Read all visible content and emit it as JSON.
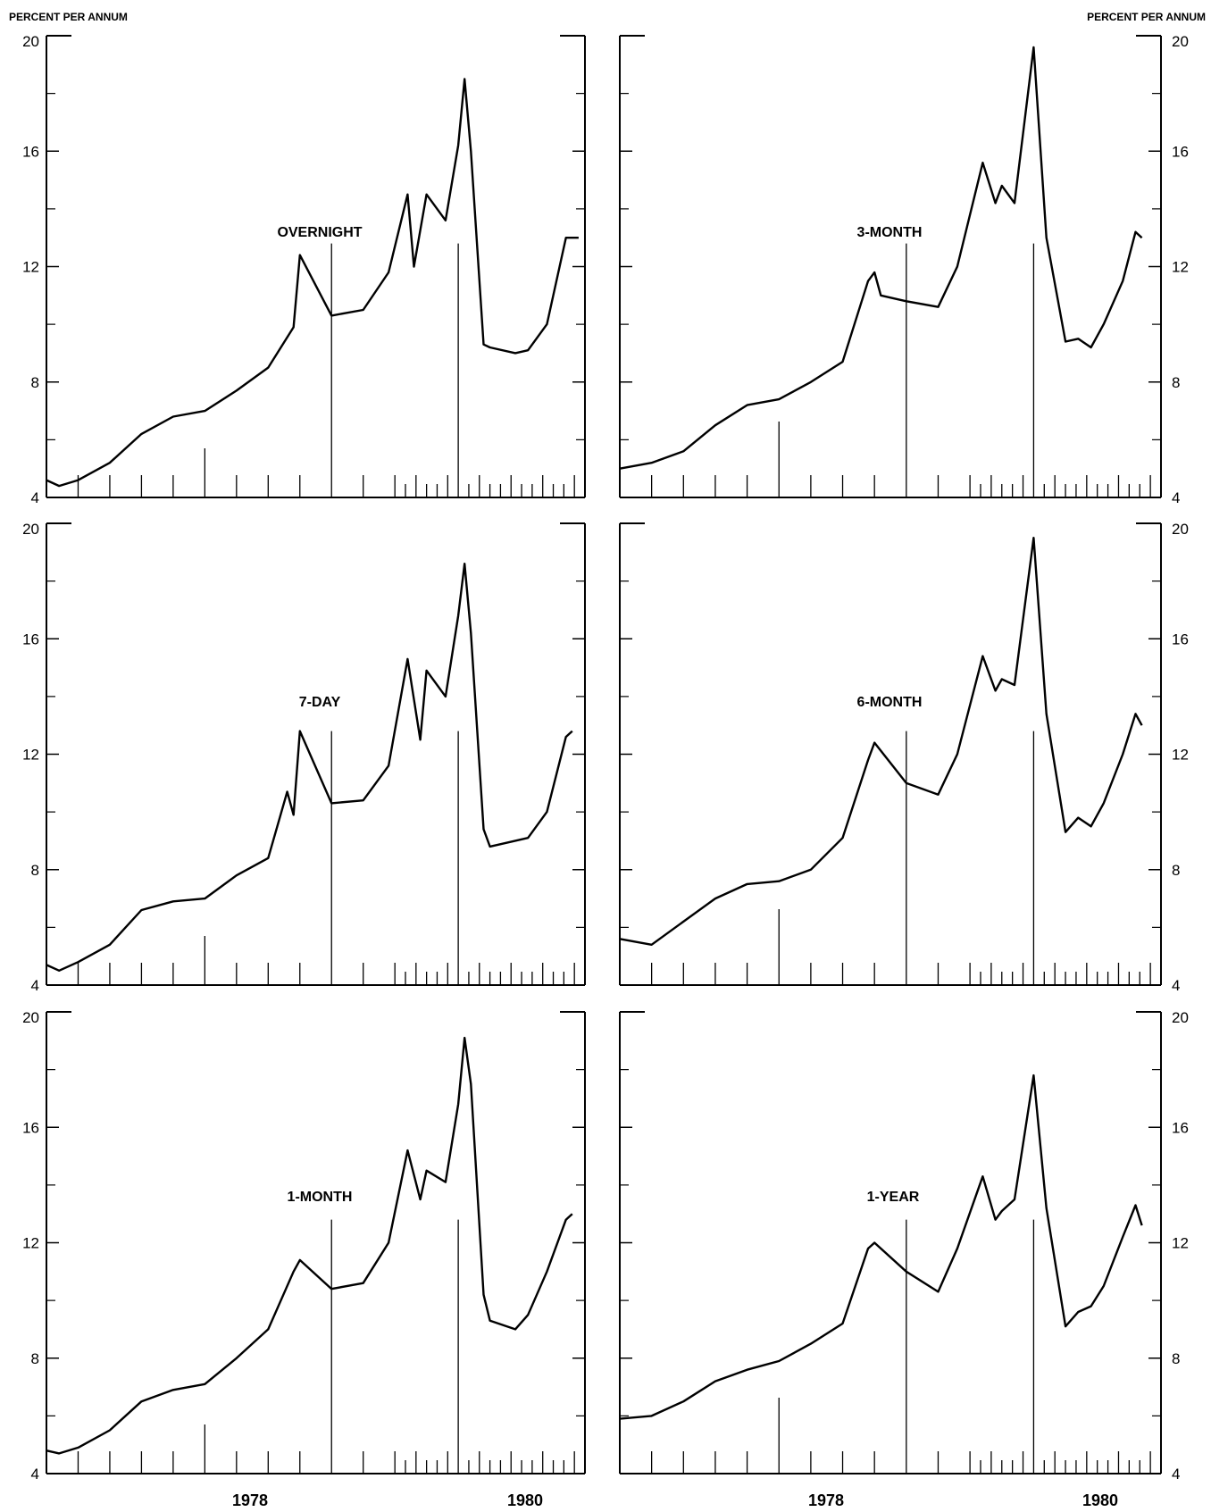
{
  "units": {
    "left": "PERCENT PER ANNUM",
    "right": "PERCENT PER ANNUM"
  },
  "years": [
    "1978",
    "1980"
  ],
  "ytick_labels": [
    "4",
    "8",
    "12",
    "16",
    "20"
  ],
  "chart_data": [
    {
      "type": "line",
      "title": "OVERNIGHT",
      "ylim": [
        4,
        20
      ],
      "xlim": [
        1976.5,
        1980.75
      ],
      "grid": false,
      "x": [
        1976.5,
        1976.6,
        1976.75,
        1977.0,
        1977.25,
        1977.5,
        1977.75,
        1978.0,
        1978.25,
        1978.45,
        1978.5,
        1978.75,
        1979.0,
        1979.2,
        1979.35,
        1979.4,
        1979.5,
        1979.65,
        1979.75,
        1979.8,
        1979.85,
        1979.95,
        1980.0,
        1980.2,
        1980.3,
        1980.45,
        1980.6,
        1980.7
      ],
      "y": [
        4.6,
        4.4,
        4.6,
        5.2,
        6.2,
        6.8,
        7.0,
        7.7,
        8.5,
        9.9,
        12.4,
        10.3,
        10.5,
        11.8,
        14.5,
        12.0,
        14.5,
        13.6,
        16.2,
        18.5,
        16.0,
        9.3,
        9.2,
        9.0,
        9.1,
        10.0,
        13.0,
        13.0
      ]
    },
    {
      "type": "line",
      "title": "3-MONTH",
      "ylim": [
        4,
        20
      ],
      "xlim": [
        1976.5,
        1980.75
      ],
      "grid": false,
      "x": [
        1976.5,
        1976.75,
        1977.0,
        1977.25,
        1977.5,
        1977.75,
        1978.0,
        1978.25,
        1978.45,
        1978.5,
        1978.55,
        1978.75,
        1979.0,
        1979.15,
        1979.35,
        1979.45,
        1979.5,
        1979.6,
        1979.75,
        1979.85,
        1980.0,
        1980.1,
        1980.2,
        1980.3,
        1980.45,
        1980.55,
        1980.6
      ],
      "y": [
        5.0,
        5.2,
        5.6,
        6.5,
        7.2,
        7.4,
        8.0,
        8.7,
        11.5,
        11.8,
        11.0,
        10.8,
        10.6,
        12.0,
        15.6,
        14.2,
        14.8,
        14.2,
        19.6,
        13.0,
        9.4,
        9.5,
        9.2,
        10.0,
        11.5,
        13.2,
        13.0
      ]
    },
    {
      "type": "line",
      "title": "7-DAY",
      "ylim": [
        4,
        20
      ],
      "xlim": [
        1976.5,
        1980.75
      ],
      "grid": false,
      "x": [
        1976.5,
        1976.6,
        1976.75,
        1977.0,
        1977.25,
        1977.5,
        1977.75,
        1978.0,
        1978.25,
        1978.4,
        1978.45,
        1978.5,
        1978.75,
        1979.0,
        1979.2,
        1979.35,
        1979.45,
        1979.5,
        1979.65,
        1979.75,
        1979.8,
        1979.85,
        1979.95,
        1980.0,
        1980.2,
        1980.3,
        1980.45,
        1980.6,
        1980.65
      ],
      "y": [
        4.7,
        4.5,
        4.8,
        5.4,
        6.6,
        6.9,
        7.0,
        7.8,
        8.4,
        10.7,
        9.9,
        12.8,
        10.3,
        10.4,
        11.6,
        15.3,
        12.5,
        14.9,
        14.0,
        16.8,
        18.6,
        16.2,
        9.4,
        8.8,
        9.0,
        9.1,
        10.0,
        12.6,
        12.8
      ]
    },
    {
      "type": "line",
      "title": "6-MONTH",
      "ylim": [
        4,
        20
      ],
      "xlim": [
        1976.5,
        1980.75
      ],
      "grid": false,
      "x": [
        1976.5,
        1976.75,
        1977.0,
        1977.25,
        1977.5,
        1977.75,
        1978.0,
        1978.25,
        1978.45,
        1978.5,
        1978.75,
        1979.0,
        1979.15,
        1979.35,
        1979.45,
        1979.5,
        1979.6,
        1979.75,
        1979.85,
        1980.0,
        1980.1,
        1980.2,
        1980.3,
        1980.45,
        1980.55,
        1980.6
      ],
      "y": [
        5.6,
        5.4,
        6.2,
        7.0,
        7.5,
        7.6,
        8.0,
        9.1,
        11.8,
        12.4,
        11.0,
        10.6,
        12.0,
        15.4,
        14.2,
        14.6,
        14.4,
        19.5,
        13.4,
        9.3,
        9.8,
        9.5,
        10.3,
        12.0,
        13.4,
        13.0
      ]
    },
    {
      "type": "line",
      "title": "1-MONTH",
      "ylim": [
        4,
        20
      ],
      "xlim": [
        1976.5,
        1980.75
      ],
      "grid": false,
      "x": [
        1976.5,
        1976.6,
        1976.75,
        1977.0,
        1977.25,
        1977.5,
        1977.75,
        1978.0,
        1978.25,
        1978.45,
        1978.5,
        1978.75,
        1979.0,
        1979.2,
        1979.35,
        1979.45,
        1979.5,
        1979.65,
        1979.75,
        1979.8,
        1979.85,
        1979.95,
        1980.0,
        1980.2,
        1980.3,
        1980.45,
        1980.6,
        1980.65
      ],
      "y": [
        4.8,
        4.7,
        4.9,
        5.5,
        6.5,
        6.9,
        7.1,
        8.0,
        9.0,
        11.0,
        11.4,
        10.4,
        10.6,
        12.0,
        15.2,
        13.5,
        14.5,
        14.1,
        16.8,
        19.1,
        17.5,
        10.2,
        9.3,
        9.0,
        9.5,
        11.0,
        12.8,
        13.0
      ]
    },
    {
      "type": "line",
      "title": "1-YEAR",
      "ylim": [
        4,
        20
      ],
      "xlim": [
        1976.5,
        1980.75
      ],
      "grid": false,
      "x": [
        1976.5,
        1976.75,
        1977.0,
        1977.25,
        1977.5,
        1977.75,
        1978.0,
        1978.25,
        1978.45,
        1978.5,
        1978.75,
        1979.0,
        1979.15,
        1979.35,
        1979.45,
        1979.5,
        1979.6,
        1979.75,
        1979.85,
        1980.0,
        1980.1,
        1980.2,
        1980.3,
        1980.45,
        1980.55,
        1980.6
      ],
      "y": [
        5.9,
        6.0,
        6.5,
        7.2,
        7.6,
        7.9,
        8.5,
        9.2,
        11.8,
        12.0,
        11.0,
        10.3,
        11.8,
        14.3,
        12.8,
        13.1,
        13.5,
        17.8,
        13.2,
        9.1,
        9.6,
        9.8,
        10.5,
        12.2,
        13.3,
        12.6
      ]
    }
  ]
}
